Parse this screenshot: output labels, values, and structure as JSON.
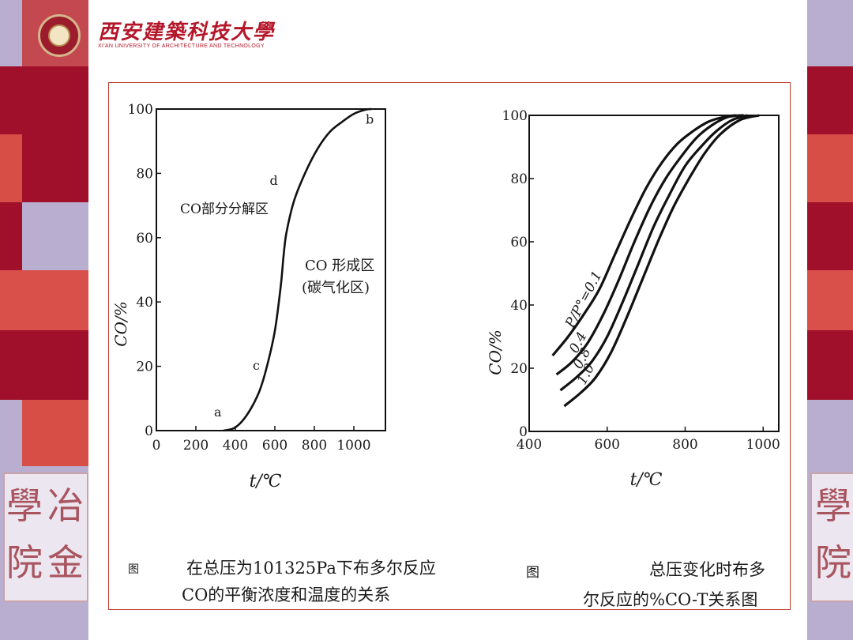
{
  "header": {
    "university_cn": "西安建築科技大學",
    "university_en": "XI'AN UNIVERSITY OF ARCHITECTURE AND TECHNOLOGY",
    "side_seal_text": [
      "冶",
      "金",
      "學",
      "院"
    ]
  },
  "chart_data": [
    {
      "type": "line",
      "xlabel": "t/℃",
      "ylabel": "CO/%",
      "xlim": [
        0,
        1160
      ],
      "ylim": [
        0,
        100
      ],
      "x_ticks": [
        "0",
        "200",
        "400",
        "600",
        "800",
        "1000"
      ],
      "y_ticks": [
        "0",
        "20",
        "40",
        "60",
        "80",
        "100"
      ],
      "grid": false,
      "series": [
        {
          "x": [
            340,
            400,
            460,
            520,
            560,
            600,
            630,
            645,
            660,
            700,
            760,
            820,
            880,
            940,
            1000,
            1060,
            1090
          ],
          "y": [
            0,
            1,
            5,
            12,
            20,
            31,
            45,
            55,
            62,
            72,
            81,
            88,
            93,
            96,
            98.5,
            99.8,
            100
          ]
        }
      ],
      "point_labels": [
        {
          "label": "a",
          "x": 340,
          "y": 3
        },
        {
          "label": "c",
          "x": 520,
          "y": 17
        },
        {
          "label": "d",
          "x": 630,
          "y": 74
        },
        {
          "label": "b",
          "x": 1060,
          "y": 95
        }
      ],
      "annotations": [
        "CO部分分解区",
        "CO 形成区",
        "(碳气化区)"
      ],
      "caption_prefix": "图",
      "caption": [
        "在总压为101325Pa下布多尔反应",
        "CO的平衡浓度和温度的关系"
      ]
    },
    {
      "type": "line",
      "xlabel": "t/℃",
      "ylabel": "CO/%",
      "xlim": [
        400,
        1040
      ],
      "ylim": [
        0,
        100
      ],
      "x_ticks": [
        "400",
        "600",
        "800",
        "1000"
      ],
      "y_ticks": [
        "0",
        "20",
        "40",
        "60",
        "80",
        "100"
      ],
      "grid": false,
      "legend_prefix": "P/P°=",
      "series": [
        {
          "name": "0.1",
          "x": [
            460,
            500,
            540,
            580,
            620,
            660,
            700,
            740,
            780,
            820,
            860,
            900,
            930
          ],
          "y": [
            24,
            30,
            37,
            45,
            56,
            67,
            77,
            85,
            91,
            95,
            98,
            99.5,
            100
          ]
        },
        {
          "name": "0.4",
          "x": [
            470,
            510,
            550,
            590,
            630,
            670,
            710,
            750,
            790,
            830,
            870,
            910,
            950
          ],
          "y": [
            18,
            22,
            28,
            37,
            48,
            60,
            71,
            80,
            87,
            93,
            97,
            99.5,
            100
          ]
        },
        {
          "name": "0.8",
          "x": [
            480,
            520,
            560,
            600,
            640,
            680,
            720,
            760,
            800,
            840,
            880,
            920,
            960
          ],
          "y": [
            13,
            17,
            22,
            30,
            41,
            53,
            65,
            75,
            84,
            90,
            95,
            98.5,
            100
          ]
        },
        {
          "name": "1.0",
          "x": [
            490,
            530,
            570,
            610,
            650,
            690,
            730,
            770,
            810,
            850,
            890,
            940,
            990
          ],
          "y": [
            8,
            12,
            17,
            25,
            36,
            48,
            60,
            71,
            80,
            88,
            94,
            98.5,
            100
          ]
        }
      ],
      "caption_prefix": "图",
      "caption": [
        "总压变化时布多",
        "尔反应的%CO-T关系图"
      ]
    }
  ]
}
